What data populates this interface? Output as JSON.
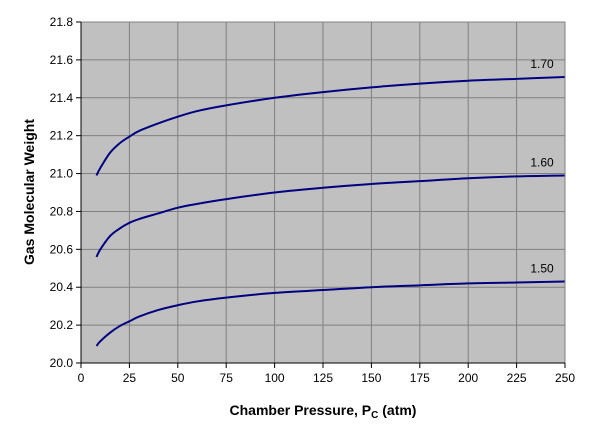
{
  "chart_data": {
    "type": "line",
    "title": "",
    "xlabel": "Chamber Pressure, P",
    "xlabel_subscript": "C",
    "xlabel_suffix": " (atm)",
    "ylabel": "Gas Molecular Weight",
    "xlim": [
      0,
      250
    ],
    "ylim": [
      20.0,
      21.8
    ],
    "x_ticks": [
      "0",
      "25",
      "50",
      "75",
      "100",
      "125",
      "150",
      "175",
      "200",
      "225",
      "250"
    ],
    "y_ticks": [
      "20.0",
      "20.2",
      "20.4",
      "20.6",
      "20.8",
      "21.0",
      "21.2",
      "21.4",
      "21.6",
      "21.8"
    ],
    "grid": true,
    "legend": "none",
    "plot_background": "#c0c0c0",
    "line_color": "#000080",
    "grid_color": "#808080",
    "series": [
      {
        "name": "1.70",
        "x": [
          8,
          10,
          15,
          20,
          25,
          30,
          40,
          50,
          60,
          75,
          100,
          125,
          150,
          175,
          200,
          225,
          250
        ],
        "values": [
          20.99,
          21.03,
          21.11,
          21.16,
          21.195,
          21.225,
          21.265,
          21.3,
          21.33,
          21.36,
          21.4,
          21.43,
          21.455,
          21.475,
          21.49,
          21.5,
          21.51
        ]
      },
      {
        "name": "1.60",
        "x": [
          8,
          10,
          15,
          20,
          25,
          30,
          40,
          50,
          60,
          75,
          100,
          125,
          150,
          175,
          200,
          225,
          250
        ],
        "values": [
          20.56,
          20.6,
          20.67,
          20.71,
          20.74,
          20.76,
          20.79,
          20.82,
          20.84,
          20.865,
          20.9,
          20.925,
          20.945,
          20.96,
          20.975,
          20.985,
          20.99
        ]
      },
      {
        "name": "1.50",
        "x": [
          8,
          10,
          15,
          20,
          25,
          30,
          40,
          50,
          60,
          75,
          100,
          125,
          150,
          175,
          200,
          225,
          250
        ],
        "values": [
          20.09,
          20.115,
          20.16,
          20.195,
          20.22,
          20.245,
          20.28,
          20.305,
          20.325,
          20.345,
          20.37,
          20.385,
          20.4,
          20.41,
          20.42,
          20.425,
          20.43
        ]
      }
    ]
  }
}
